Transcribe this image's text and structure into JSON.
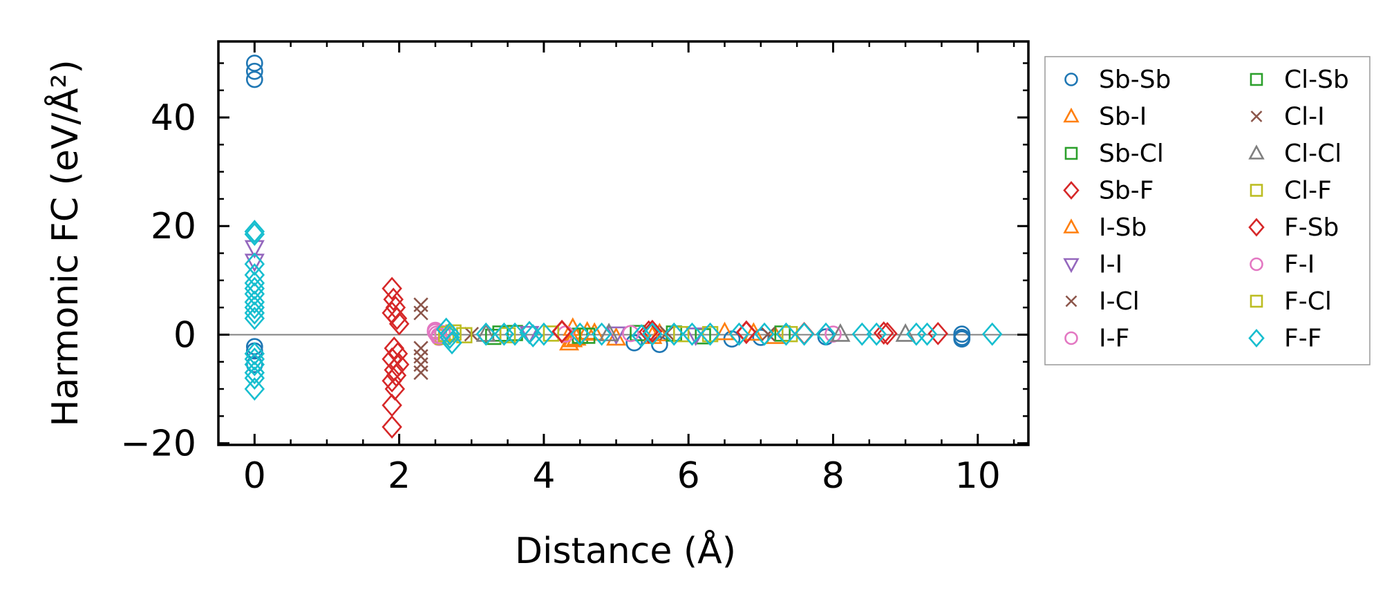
{
  "chart_data": {
    "type": "scatter",
    "title": "",
    "xlabel": "Distance (Å)",
    "ylabel": "Harmonic FC (eV/Å²)",
    "xlim": [
      -0.5,
      10.7
    ],
    "ylim": [
      -20.3,
      54
    ],
    "xticks": [
      0,
      2,
      4,
      6,
      8,
      10
    ],
    "yticks": [
      -20,
      0,
      20,
      40
    ],
    "xtick_labels": [
      "0",
      "2",
      "4",
      "6",
      "8",
      "10"
    ],
    "ytick_labels": [
      "−20",
      "0",
      "20",
      "40"
    ],
    "x_minor_step": 0.5,
    "y_minor_step": 5,
    "zero_line": true,
    "grid": false,
    "legend_position": "outside-right",
    "legend_columns": 2,
    "series": [
      {
        "name": "Sb-Sb",
        "marker": "circle",
        "color": "#1f77b4",
        "points": [
          [
            0,
            50
          ],
          [
            0,
            48.5
          ],
          [
            0,
            47
          ],
          [
            0,
            -2.2
          ],
          [
            0,
            -3
          ],
          [
            0,
            -5.5
          ],
          [
            5.25,
            -1.5
          ],
          [
            5.6,
            -1.8
          ],
          [
            6.6,
            -0.8
          ],
          [
            7.0,
            -0.5
          ],
          [
            7.9,
            -0.4
          ],
          [
            9.78,
            0.1
          ],
          [
            9.78,
            -0.5
          ],
          [
            9.78,
            -0.8
          ]
        ]
      },
      {
        "name": "Sb-I",
        "marker": "triangle",
        "color": "#ff7f0e",
        "points": [
          [
            4.35,
            -1.5
          ],
          [
            4.4,
            1.2
          ],
          [
            4.45,
            -0.6
          ],
          [
            4.6,
            0.5
          ],
          [
            5.0,
            -0.6
          ],
          [
            5.6,
            0.2
          ],
          [
            6.5,
            0.4
          ],
          [
            7.2,
            -0.3
          ]
        ]
      },
      {
        "name": "Sb-Cl",
        "marker": "square",
        "color": "#2ca02c",
        "points": [
          [
            3.3,
            -0.4
          ],
          [
            3.6,
            0.3
          ],
          [
            4.5,
            -0.2
          ],
          [
            5.3,
            0.3
          ],
          [
            6.2,
            -0.3
          ],
          [
            7.3,
            0.2
          ]
        ]
      },
      {
        "name": "Sb-F",
        "marker": "diamond",
        "color": "#d62728",
        "points": [
          [
            1.9,
            8.5
          ],
          [
            1.92,
            6.5
          ],
          [
            1.95,
            5
          ],
          [
            1.9,
            4
          ],
          [
            1.97,
            3
          ],
          [
            2.0,
            2
          ],
          [
            1.93,
            -2.5
          ],
          [
            1.98,
            -3.5
          ],
          [
            1.9,
            -4.5
          ],
          [
            2.0,
            -5.5
          ],
          [
            1.93,
            -6.5
          ],
          [
            1.96,
            -7.5
          ],
          [
            1.9,
            -8.5
          ],
          [
            1.94,
            -10
          ],
          [
            1.9,
            -13
          ],
          [
            1.9,
            -17
          ],
          [
            4.25,
            0.5
          ],
          [
            5.5,
            0.6
          ],
          [
            6.8,
            0.5
          ],
          [
            7.6,
            0.2
          ],
          [
            8.7,
            0.3
          ],
          [
            9.45,
            0.2
          ]
        ]
      },
      {
        "name": "I-Sb",
        "marker": "triangle",
        "color": "#ff7f0e",
        "points": [
          [
            4.4,
            -0.9
          ],
          [
            4.7,
            0.3
          ],
          [
            5.5,
            -0.3
          ],
          [
            6.9,
            0.3
          ]
        ]
      },
      {
        "name": "I-I",
        "marker": "triangle-down",
        "color": "#9467bd",
        "points": [
          [
            0,
            16
          ],
          [
            0,
            13.5
          ],
          [
            3.8,
            0.2
          ],
          [
            5.0,
            0.1
          ],
          [
            6.1,
            -0.1
          ]
        ]
      },
      {
        "name": "I-Cl",
        "marker": "x",
        "color": "#8c564b",
        "points": [
          [
            2.3,
            5.5
          ],
          [
            2.3,
            4
          ],
          [
            2.3,
            -2.5
          ],
          [
            2.3,
            -4
          ],
          [
            2.3,
            -5.5
          ],
          [
            2.3,
            -7
          ]
        ]
      },
      {
        "name": "I-F",
        "marker": "circle",
        "color": "#e377c2",
        "points": [
          [
            2.5,
            0.8
          ],
          [
            2.52,
            0.1
          ],
          [
            2.55,
            -0.5
          ],
          [
            4.3,
            0.1
          ],
          [
            5.2,
            0.2
          ],
          [
            8.0,
            0.1
          ]
        ]
      },
      {
        "name": "Cl-Sb",
        "marker": "square",
        "color": "#2ca02c",
        "points": [
          [
            3.4,
            0.2
          ],
          [
            4.6,
            -0.2
          ],
          [
            5.8,
            0.2
          ]
        ]
      },
      {
        "name": "Cl-I",
        "marker": "x",
        "color": "#8c564b",
        "points": [
          [
            3.0,
            0.1
          ],
          [
            5.7,
            0.3
          ],
          [
            7.1,
            0.1
          ]
        ]
      },
      {
        "name": "Cl-Cl",
        "marker": "triangle",
        "color": "#7f7f7f",
        "points": [
          [
            3.2,
            0.1
          ],
          [
            4.9,
            0.2
          ],
          [
            8.1,
            0.1
          ],
          [
            9.0,
            0.1
          ]
        ]
      },
      {
        "name": "Cl-F",
        "marker": "square",
        "color": "#bcbd22",
        "points": [
          [
            2.6,
            -0.4
          ],
          [
            2.75,
            0.4
          ],
          [
            2.9,
            -0.1
          ],
          [
            4.1,
            0.2
          ],
          [
            5.9,
            0.1
          ],
          [
            7.4,
            0.1
          ]
        ]
      },
      {
        "name": "F-Sb",
        "marker": "diamond",
        "color": "#d62728",
        "points": [
          [
            4.25,
            0.6
          ],
          [
            5.45,
            0.5
          ],
          [
            6.8,
            0.4
          ],
          [
            8.75,
            0.2
          ]
        ]
      },
      {
        "name": "F-I",
        "marker": "circle",
        "color": "#e377c2",
        "points": [
          [
            2.5,
            0.5
          ],
          [
            2.55,
            -0.2
          ],
          [
            2.6,
            0.2
          ]
        ]
      },
      {
        "name": "F-Cl",
        "marker": "square",
        "color": "#bcbd22",
        "points": [
          [
            2.65,
            0.1
          ],
          [
            3.5,
            -0.1
          ],
          [
            6.3,
            0.1
          ]
        ]
      },
      {
        "name": "F-F",
        "marker": "diamond",
        "color": "#17becf",
        "points": [
          [
            0,
            19
          ],
          [
            0,
            18.5
          ],
          [
            0,
            13
          ],
          [
            0,
            11
          ],
          [
            0,
            9.5
          ],
          [
            0,
            8.5
          ],
          [
            0,
            7.5
          ],
          [
            0,
            6
          ],
          [
            0,
            5
          ],
          [
            0,
            4
          ],
          [
            0,
            3
          ],
          [
            0,
            -3.5
          ],
          [
            0,
            -4.5
          ],
          [
            0,
            -5.5
          ],
          [
            0,
            -7
          ],
          [
            0,
            -8
          ],
          [
            0,
            -10
          ],
          [
            2.65,
            1
          ],
          [
            2.7,
            0.2
          ],
          [
            2.7,
            -0.5
          ],
          [
            2.73,
            -1.5
          ],
          [
            3.2,
            0.1
          ],
          [
            3.45,
            0.1
          ],
          [
            3.6,
            0.1
          ],
          [
            3.8,
            0.4
          ],
          [
            3.85,
            -0.2
          ],
          [
            4.0,
            0.1
          ],
          [
            4.5,
            0.1
          ],
          [
            4.8,
            0.1
          ],
          [
            5.35,
            -0.2
          ],
          [
            5.5,
            0.1
          ],
          [
            5.8,
            0.1
          ],
          [
            6.05,
            0.1
          ],
          [
            6.3,
            0.1
          ],
          [
            6.7,
            0.1
          ],
          [
            7.05,
            0.1
          ],
          [
            7.35,
            0.1
          ],
          [
            7.6,
            0.1
          ],
          [
            7.9,
            0.1
          ],
          [
            8.4,
            0.1
          ],
          [
            8.6,
            0.1
          ],
          [
            9.15,
            0.1
          ],
          [
            9.3,
            0.1
          ],
          [
            10.2,
            0.1
          ]
        ]
      }
    ]
  }
}
